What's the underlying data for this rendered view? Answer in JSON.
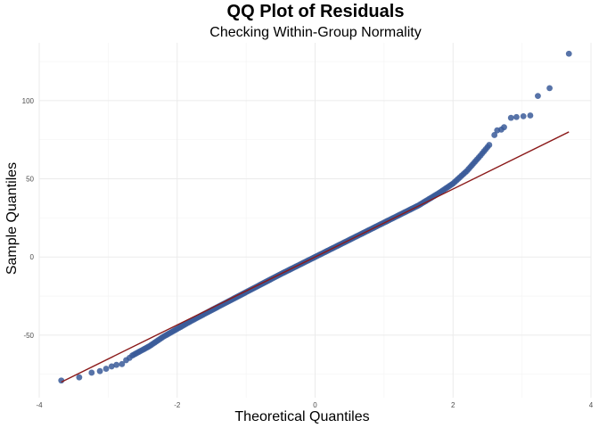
{
  "chart_data": {
    "type": "scatter",
    "title": "QQ Plot of Residuals",
    "subtitle": "Checking Within-Group Normality",
    "xlabel": "Theoretical Quantiles",
    "ylabel": "Sample Quantiles",
    "xlim": [
      -4,
      4
    ],
    "ylim": [
      -90,
      137
    ],
    "x_ticks": [
      -4,
      -2,
      0,
      2,
      4
    ],
    "y_ticks": [
      -50,
      0,
      50,
      100
    ],
    "grid": true,
    "point_color": "#3a5a99",
    "line_color": "#8b1a1a",
    "reference_line": {
      "x": [
        -3.68,
        3.68
      ],
      "y": [
        -80,
        80
      ]
    },
    "outlier_points": [
      {
        "x": -3.68,
        "y": -79
      },
      {
        "x": -3.42,
        "y": -77
      },
      {
        "x": -3.24,
        "y": -74
      },
      {
        "x": -3.12,
        "y": -73
      },
      {
        "x": -3.03,
        "y": -71.5
      },
      {
        "x": -2.95,
        "y": -70
      },
      {
        "x": -2.88,
        "y": -69
      },
      {
        "x": -2.8,
        "y": -68.5
      },
      {
        "x": -2.74,
        "y": -66
      },
      {
        "x": -2.69,
        "y": -64.5
      },
      {
        "x": 2.6,
        "y": 78
      },
      {
        "x": 2.64,
        "y": 81
      },
      {
        "x": 2.7,
        "y": 81.5
      },
      {
        "x": 2.74,
        "y": 83
      },
      {
        "x": 2.84,
        "y": 89
      },
      {
        "x": 2.92,
        "y": 89.5
      },
      {
        "x": 3.02,
        "y": 90
      },
      {
        "x": 3.12,
        "y": 90.5
      },
      {
        "x": 3.23,
        "y": 103
      },
      {
        "x": 3.4,
        "y": 108
      },
      {
        "x": 3.68,
        "y": 130
      }
    ],
    "curve_points": [
      {
        "x": -2.65,
        "y": -63
      },
      {
        "x": -2.4,
        "y": -57
      },
      {
        "x": -2.2,
        "y": -51
      },
      {
        "x": -2.0,
        "y": -46
      },
      {
        "x": -1.8,
        "y": -41
      },
      {
        "x": -1.5,
        "y": -34
      },
      {
        "x": -1.0,
        "y": -22.5
      },
      {
        "x": -0.5,
        "y": -11
      },
      {
        "x": 0.0,
        "y": 0
      },
      {
        "x": 0.5,
        "y": 11
      },
      {
        "x": 1.0,
        "y": 22
      },
      {
        "x": 1.5,
        "y": 33
      },
      {
        "x": 1.8,
        "y": 41
      },
      {
        "x": 2.0,
        "y": 47
      },
      {
        "x": 2.2,
        "y": 55
      },
      {
        "x": 2.4,
        "y": 65
      },
      {
        "x": 2.55,
        "y": 73
      }
    ]
  }
}
